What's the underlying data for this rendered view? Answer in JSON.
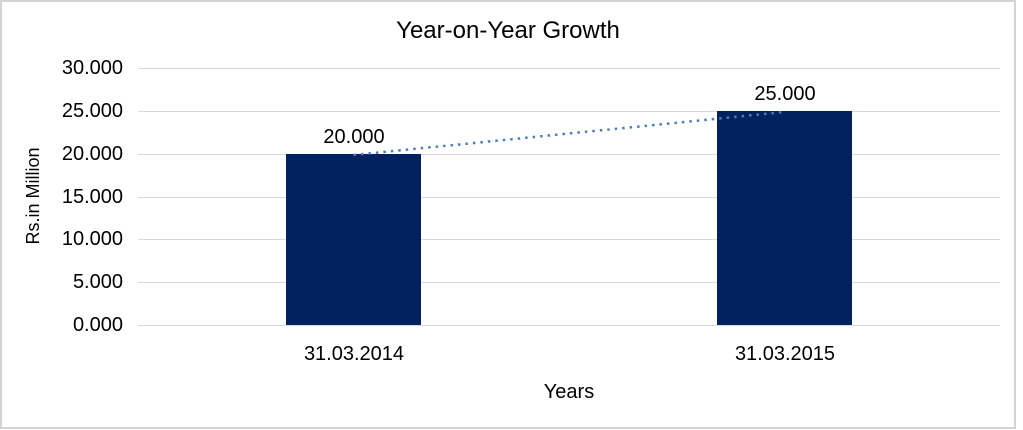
{
  "frame": {
    "border_color": "#d3d3d3",
    "background_color": "#ffffff"
  },
  "chart_data": {
    "type": "bar",
    "title": "Year-on-Year Growth",
    "xlabel": "Years",
    "ylabel": "Rs.in Million",
    "categories": [
      "31.03.2014",
      "31.03.2015"
    ],
    "values": [
      20,
      25
    ],
    "data_labels": [
      "20.000",
      "25.000"
    ],
    "yticks": [
      "30.000",
      "25.000",
      "20.000",
      "15.000",
      "10.000",
      "5.000",
      "0.000"
    ],
    "ylim": [
      0,
      30
    ],
    "ytick_step": 5,
    "grid": true,
    "legend": false,
    "bar_color": "#02225f",
    "gridline_color": "#d9d9d9",
    "trendline": {
      "type": "linear",
      "style": "dotted",
      "color": "#4a7ebd"
    },
    "text_color": "#000000"
  }
}
